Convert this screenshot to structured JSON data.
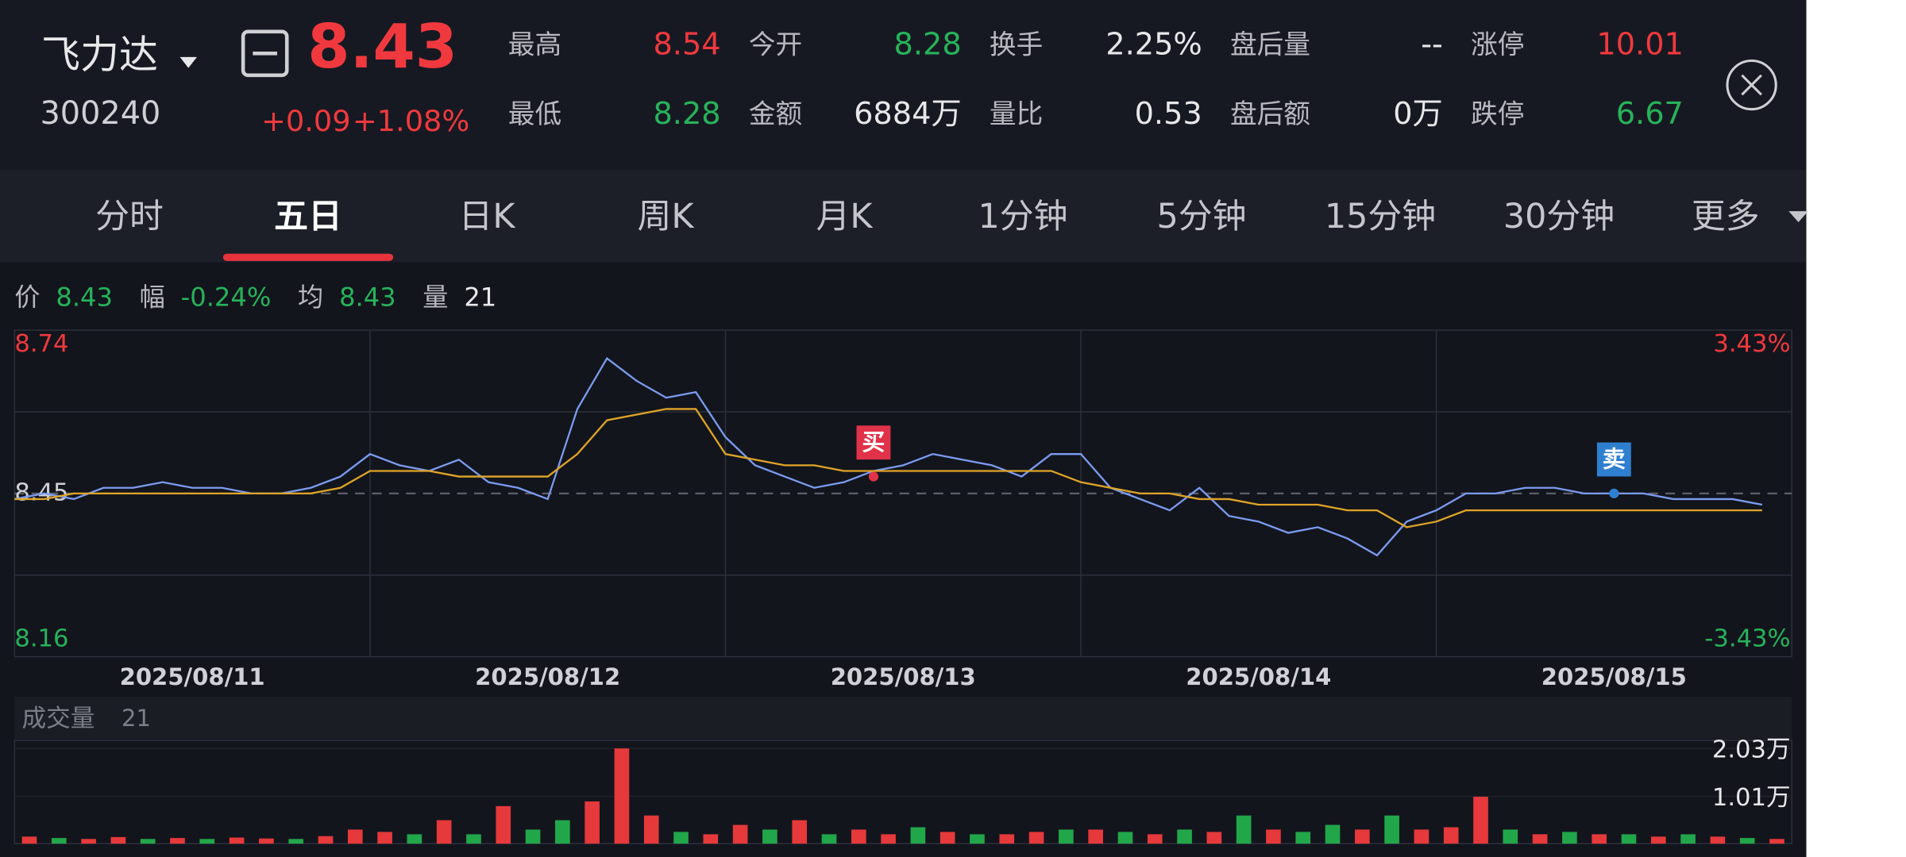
{
  "header": {
    "name": "飞力达",
    "code": "300240",
    "price": "8.43",
    "change": "+0.09",
    "change_pct": "+1.08%"
  },
  "stats": [
    {
      "label": "最高",
      "value": "8.54",
      "color": "#f0393e"
    },
    {
      "label": "今开",
      "value": "8.28",
      "color": "#27b35a"
    },
    {
      "label": "换手",
      "value": "2.25%",
      "color": "#e8e8ea"
    },
    {
      "label": "盘后量",
      "value": "--",
      "color": "#e8e8ea"
    },
    {
      "label": "涨停",
      "value": "10.01",
      "color": "#f0393e"
    },
    {
      "label": "最低",
      "value": "8.28",
      "color": "#27b35a"
    },
    {
      "label": "金额",
      "value": "6884万",
      "color": "#e8e8ea"
    },
    {
      "label": "量比",
      "value": "0.53",
      "color": "#e8e8ea"
    },
    {
      "label": "盘后额",
      "value": "0万",
      "color": "#e8e8ea"
    },
    {
      "label": "跌停",
      "value": "6.67",
      "color": "#27b35a"
    }
  ],
  "tabs": [
    "分时",
    "五日",
    "日K",
    "周K",
    "月K",
    "1分钟",
    "5分钟",
    "15分钟",
    "30分钟",
    "更多"
  ],
  "active_tab": 1,
  "info": [
    {
      "label": "价",
      "value": "8.43"
    },
    {
      "label": "幅",
      "value": "-0.24%"
    },
    {
      "label": "均",
      "value": "8.43"
    },
    {
      "label": "量",
      "value": "21"
    }
  ],
  "chart_data": [
    {
      "type": "line",
      "x": [
        0,
        1,
        2,
        3,
        4,
        5,
        6,
        7,
        8,
        9,
        10,
        11,
        12,
        13,
        14,
        15,
        16,
        17,
        18,
        19,
        20,
        21,
        22,
        23,
        24,
        25,
        26,
        27,
        28,
        29,
        30,
        31,
        32,
        33,
        34,
        35,
        36,
        37,
        38,
        39,
        40,
        41,
        42,
        43,
        44,
        45,
        46,
        47,
        48,
        49,
        50,
        51,
        52,
        53,
        54,
        55,
        56,
        57,
        58,
        59
      ],
      "xlim": [
        0,
        60
      ],
      "ylim": [
        8.16,
        8.74
      ],
      "yticks": [
        8.16,
        8.45,
        8.74
      ],
      "y2lim": [
        -3.43,
        3.43
      ],
      "y2ticks": [
        {
          "value": 3.43,
          "label": "3.43%"
        },
        {
          "value": -3.43,
          "label": "-3.43%"
        }
      ],
      "day_labels": [
        "2025/08/11",
        "2025/08/12",
        "2025/08/13",
        "2025/08/14",
        "2025/08/15"
      ],
      "series": [
        {
          "color": "#7b9cf0",
          "values": [
            8.44,
            8.45,
            8.44,
            8.46,
            8.46,
            8.47,
            8.46,
            8.46,
            8.45,
            8.45,
            8.46,
            8.48,
            8.52,
            8.5,
            8.49,
            8.51,
            8.47,
            8.46,
            8.44,
            8.6,
            8.69,
            8.65,
            8.62,
            8.63,
            8.55,
            8.5,
            8.48,
            8.46,
            8.47,
            8.49,
            8.5,
            8.52,
            8.51,
            8.5,
            8.48,
            8.52,
            8.52,
            8.46,
            8.44,
            8.42,
            8.46,
            8.41,
            8.4,
            8.38,
            8.39,
            8.37,
            8.34,
            8.4,
            8.42,
            8.45,
            8.45,
            8.46,
            8.46,
            8.45,
            8.45,
            8.45,
            8.44,
            8.44,
            8.44,
            8.43
          ]
        },
        {
          "color": "#e0a526",
          "values": [
            8.44,
            8.44,
            8.45,
            8.45,
            8.45,
            8.45,
            8.45,
            8.45,
            8.45,
            8.45,
            8.45,
            8.46,
            8.49,
            8.49,
            8.49,
            8.48,
            8.48,
            8.48,
            8.48,
            8.52,
            8.58,
            8.59,
            8.6,
            8.6,
            8.52,
            8.51,
            8.5,
            8.5,
            8.49,
            8.49,
            8.49,
            8.49,
            8.49,
            8.49,
            8.49,
            8.49,
            8.47,
            8.46,
            8.45,
            8.45,
            8.44,
            8.44,
            8.43,
            8.43,
            8.43,
            8.42,
            8.42,
            8.39,
            8.4,
            8.42,
            8.42,
            8.42,
            8.42,
            8.42,
            8.42,
            8.42,
            8.42,
            8.42,
            8.42,
            8.42
          ]
        }
      ],
      "annotations": [
        {
          "text": "买",
          "x": 29,
          "y": 8.48,
          "color": "#e0334a"
        },
        {
          "text": "卖",
          "x": 54,
          "y": 8.45,
          "color": "#2f7fd0"
        }
      ]
    },
    {
      "type": "bar",
      "title": "成交量",
      "subtitle": "21",
      "xlim": [
        0,
        60
      ],
      "ylim": [
        0,
        2.2
      ],
      "yticks": [
        {
          "value": 2.03,
          "label": "2.03万"
        },
        {
          "value": 1.01,
          "label": "1.01万"
        }
      ],
      "values": [
        0.15,
        0.12,
        0.1,
        0.14,
        0.1,
        0.12,
        0.1,
        0.13,
        0.11,
        0.1,
        0.16,
        0.3,
        0.25,
        0.2,
        0.5,
        0.2,
        0.8,
        0.3,
        0.5,
        0.9,
        2.03,
        0.6,
        0.25,
        0.2,
        0.4,
        0.3,
        0.5,
        0.2,
        0.3,
        0.2,
        0.35,
        0.25,
        0.2,
        0.2,
        0.25,
        0.3,
        0.3,
        0.25,
        0.2,
        0.3,
        0.25,
        0.6,
        0.3,
        0.25,
        0.4,
        0.3,
        0.6,
        0.3,
        0.35,
        1.0,
        0.3,
        0.2,
        0.25,
        0.2,
        0.2,
        0.15,
        0.2,
        0.15,
        0.12,
        0.1
      ],
      "colors": [
        "#e5393b",
        "#22a64a",
        "#e5393b",
        "#e5393b",
        "#22a64a",
        "#e5393b",
        "#22a64a",
        "#e5393b",
        "#e5393b",
        "#22a64a",
        "#e5393b",
        "#e5393b",
        "#e5393b",
        "#22a64a",
        "#e5393b",
        "#22a64a",
        "#e5393b",
        "#22a64a",
        "#22a64a",
        "#e5393b",
        "#e5393b",
        "#e5393b",
        "#22a64a",
        "#e5393b",
        "#e5393b",
        "#22a64a",
        "#e5393b",
        "#22a64a",
        "#e5393b",
        "#e5393b",
        "#22a64a",
        "#e5393b",
        "#22a64a",
        "#e5393b",
        "#e5393b",
        "#22a64a",
        "#e5393b",
        "#22a64a",
        "#e5393b",
        "#22a64a",
        "#e5393b",
        "#22a64a",
        "#e5393b",
        "#22a64a",
        "#22a64a",
        "#e5393b",
        "#22a64a",
        "#e5393b",
        "#e5393b",
        "#e5393b",
        "#22a64a",
        "#e5393b",
        "#22a64a",
        "#e5393b",
        "#22a64a",
        "#e5393b",
        "#22a64a",
        "#e5393b",
        "#22a64a",
        "#e5393b"
      ]
    }
  ]
}
